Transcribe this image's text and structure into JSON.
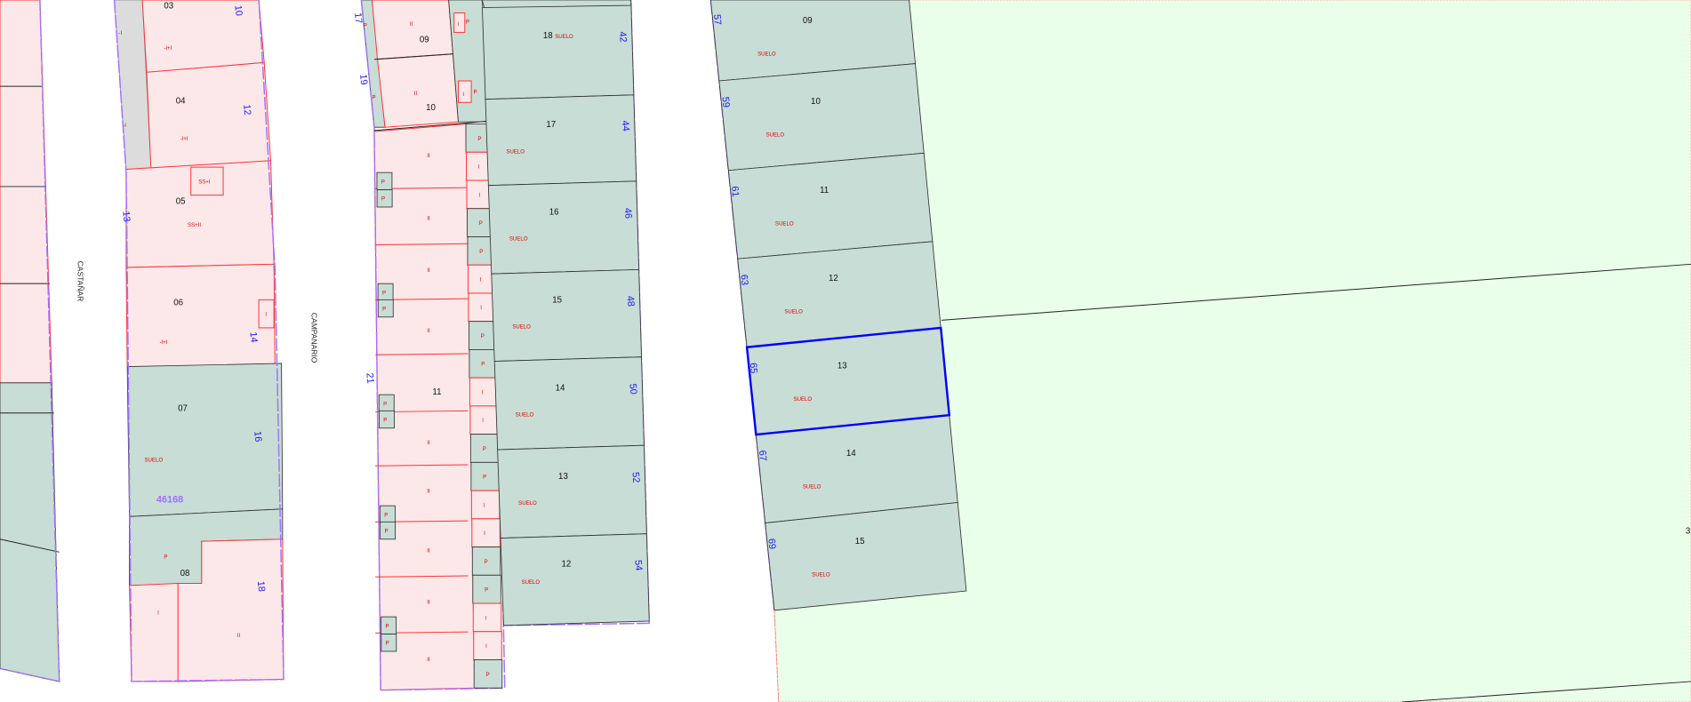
{
  "map": {
    "colors": {
      "built": "#fde8e9",
      "land": "#c8ddd5",
      "common": "#dcdcdc",
      "rustic": "#eaffea",
      "boundary": "#a070ff",
      "selected": "#0000ff",
      "label": "#e00000"
    },
    "streets": {
      "castanar": "CASTAÑAR",
      "campanario": "CAMPANARIO"
    },
    "block_ref": "46168",
    "block_b": {
      "parcels": [
        {
          "id": "03",
          "use": "-I+I"
        },
        {
          "id": "04",
          "use": "-I+I"
        },
        {
          "id": "05",
          "use": "SS+II",
          "sub": "SS+I"
        },
        {
          "id": "06",
          "use": "-I+I",
          "sub": "I"
        },
        {
          "id": "07",
          "use": "SUELO"
        },
        {
          "id": "08",
          "use": "P",
          "sub": "I",
          "sub2": "II"
        }
      ],
      "strip_use": "-I",
      "house_numbers": [
        "10",
        "12",
        "13",
        "14",
        "16",
        "18"
      ]
    },
    "block_c": {
      "parcels": [
        {
          "id": "09",
          "use": "II"
        },
        {
          "id": "10",
          "use": "II"
        },
        {
          "id": "11",
          "use": "II"
        }
      ],
      "row_use": "II",
      "cells": [
        "P",
        "I",
        "I",
        "P",
        "P",
        "I",
        "I",
        "P",
        "P",
        "I",
        "I",
        "P",
        "P",
        "I",
        "I",
        "P",
        "P",
        "I",
        "I",
        "P"
      ],
      "side_cell": "P",
      "house_numbers": [
        "17",
        "19",
        "21"
      ]
    },
    "block_d": {
      "parcels": [
        {
          "id": "18",
          "use": "SUELO"
        },
        {
          "id": "17",
          "use": "SUELO"
        },
        {
          "id": "16",
          "use": "SUELO"
        },
        {
          "id": "15",
          "use": "SUELO"
        },
        {
          "id": "14",
          "use": "SUELO"
        },
        {
          "id": "13",
          "use": "SUELO"
        },
        {
          "id": "12",
          "use": "SUELO"
        }
      ],
      "house_numbers": [
        "42",
        "44",
        "46",
        "48",
        "50",
        "52",
        "54"
      ]
    },
    "block_e": {
      "parcels": [
        {
          "id": "09",
          "use": "SUELO"
        },
        {
          "id": "10",
          "use": "SUELO"
        },
        {
          "id": "11",
          "use": "SUELO"
        },
        {
          "id": "12",
          "use": "SUELO"
        },
        {
          "id": "13",
          "use": "SUELO",
          "selected": true
        },
        {
          "id": "14",
          "use": "SUELO"
        },
        {
          "id": "15",
          "use": "SUELO"
        }
      ],
      "house_numbers": [
        "57",
        "59",
        "61",
        "63",
        "65",
        "67",
        "69"
      ]
    },
    "edge_label": "3"
  }
}
